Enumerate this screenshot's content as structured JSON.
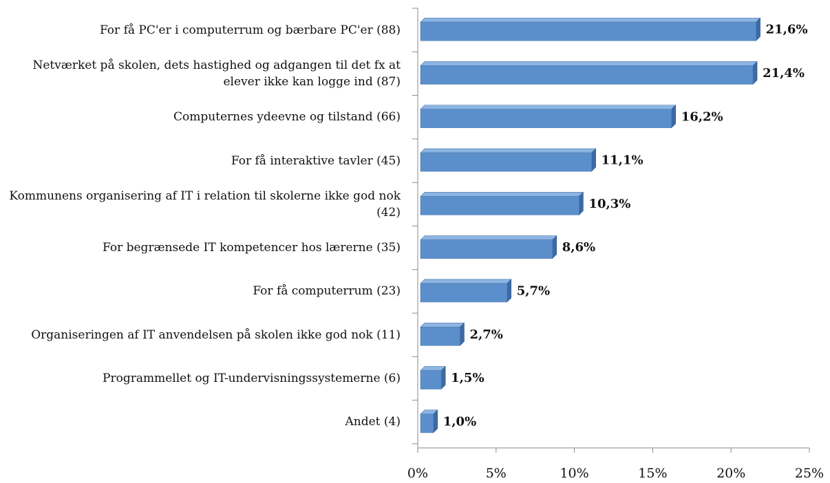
{
  "chart_data": {
    "type": "bar",
    "orientation": "horizontal",
    "categories": [
      "For få PC'er i computerrum og bærbare PC'er (88)",
      "Netværket på skolen, dets hastighed og adgangen til det fx at elever ikke kan logge ind (87)",
      "Computernes ydeevne og tilstand (66)",
      "For få interaktive tavler (45)",
      "Kommunens organisering af IT i relation til skolerne ikke god nok (42)",
      "For begrænsede IT kompetencer hos lærerne (35)",
      "For få computerrum (23)",
      "Organiseringen af IT anvendelsen på skolen ikke god nok (11)",
      "Programmellet og IT-undervisningssystemerne (6)",
      "Andet (4)"
    ],
    "values": [
      21.6,
      21.4,
      16.2,
      11.1,
      10.3,
      8.6,
      5.7,
      2.7,
      1.5,
      1.0
    ],
    "value_labels": [
      "21,6%",
      "21,4%",
      "16,2%",
      "11,1%",
      "10,3%",
      "8,6%",
      "5,7%",
      "2,7%",
      "1,5%",
      "1,0%"
    ],
    "color": "#5b8fcb",
    "xlim": [
      0,
      25
    ],
    "xticks": [
      {
        "value": 0,
        "label": "0%"
      },
      {
        "value": 5,
        "label": "5%"
      },
      {
        "value": 10,
        "label": "10%"
      },
      {
        "value": 15,
        "label": "15%"
      },
      {
        "value": 20,
        "label": "20%"
      },
      {
        "value": 25,
        "label": "25%"
      }
    ],
    "grid": false
  }
}
